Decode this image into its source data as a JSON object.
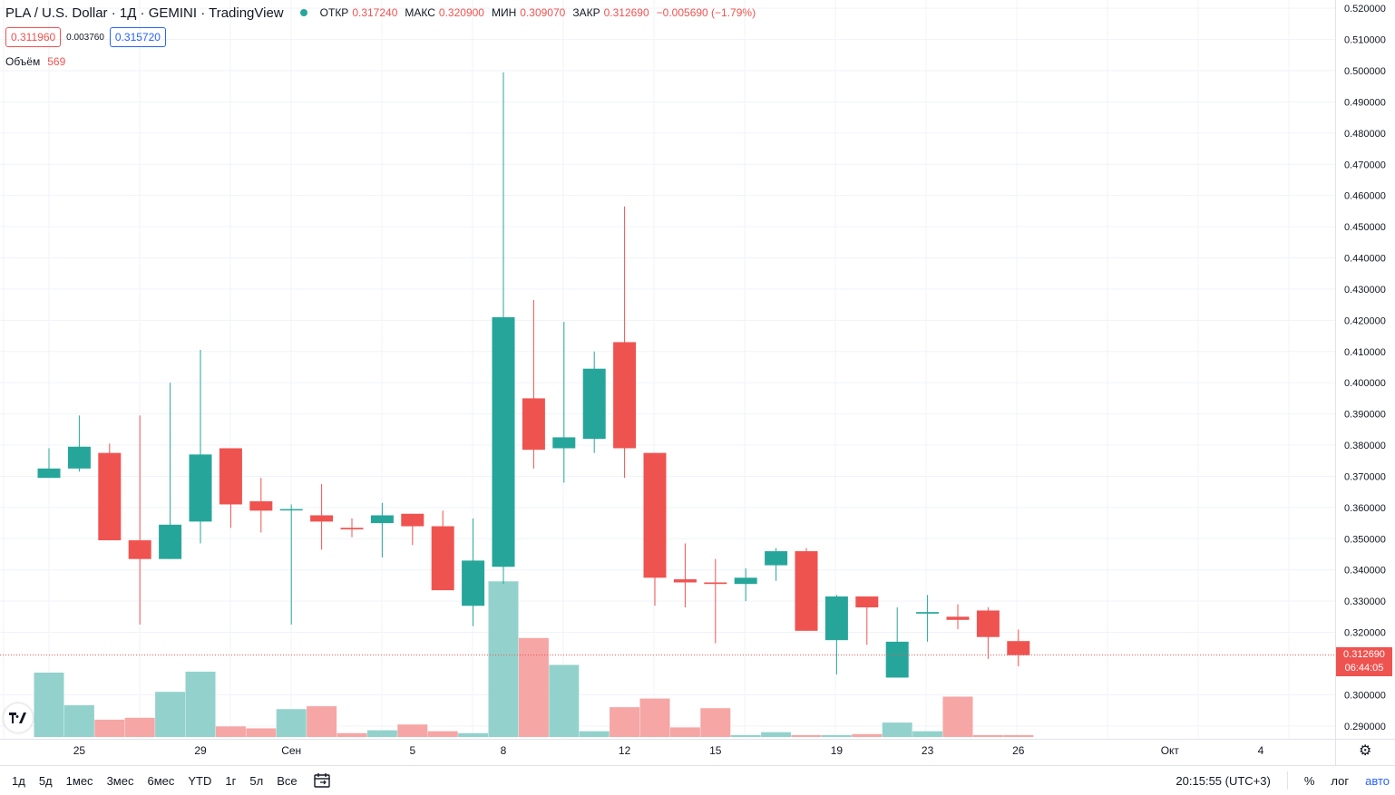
{
  "header": {
    "title": "PLA / U.S. Dollar · 1Д · GEMINI · TradingView",
    "ohlc": [
      {
        "label": "ОТКР",
        "value": "0.317240"
      },
      {
        "label": "МАКС",
        "value": "0.320900"
      },
      {
        "label": "МИН",
        "value": "0.309070"
      },
      {
        "label": "ЗАКР",
        "value": "0.312690"
      }
    ],
    "change": "−0.005690 (−1.79%)",
    "bid": "0.311960",
    "spread": "0.003760",
    "ask": "0.315720"
  },
  "volume": {
    "label": "Объём",
    "value": "569"
  },
  "last_price": {
    "price": "0.312690",
    "countdown": "06:44:05"
  },
  "logo": "tradingview-logo",
  "toolbar": {
    "ranges": [
      "1д",
      "5д",
      "1мес",
      "3мес",
      "6мес",
      "YTD",
      "1г",
      "5л",
      "Все"
    ],
    "time": "20:15:55 (UTC+3)",
    "percent": "%",
    "log": "лог",
    "auto": "авто"
  },
  "colors": {
    "up": "#26a69a",
    "down": "#ef5350",
    "up_vol": "#93d2cc",
    "down_vol": "#f5a6a5"
  },
  "chart_data": {
    "type": "candlestick",
    "y_ticks": [
      "0.520000",
      "0.510000",
      "0.500000",
      "0.490000",
      "0.480000",
      "0.470000",
      "0.460000",
      "0.450000",
      "0.440000",
      "0.430000",
      "0.420000",
      "0.410000",
      "0.400000",
      "0.390000",
      "0.380000",
      "0.370000",
      "0.360000",
      "0.350000",
      "0.340000",
      "0.330000",
      "0.320000",
      "0.300000",
      "0.290000"
    ],
    "ylim": [
      0.2865,
      0.5215
    ],
    "x_ticks": [
      {
        "label": "25",
        "idx": 1
      },
      {
        "label": "29",
        "idx": 5
      },
      {
        "label": "Сен",
        "idx": 8
      },
      {
        "label": "5",
        "idx": 12
      },
      {
        "label": "8",
        "idx": 15
      },
      {
        "label": "12",
        "idx": 19
      },
      {
        "label": "15",
        "idx": 22
      },
      {
        "label": "19",
        "idx": 26
      },
      {
        "label": "23",
        "idx": 29
      },
      {
        "label": "26",
        "idx": 32
      },
      {
        "label": "Окт",
        "idx": 37
      },
      {
        "label": "4",
        "idx": 40
      }
    ],
    "candles": [
      {
        "o": 0.3695,
        "h": 0.379,
        "l": 0.3695,
        "c": 0.3725,
        "v": 67
      },
      {
        "o": 0.3725,
        "h": 0.3895,
        "l": 0.3715,
        "c": 0.3795,
        "v": 33
      },
      {
        "o": 0.3775,
        "h": 0.3805,
        "l": 0.3495,
        "c": 0.3495,
        "v": 18
      },
      {
        "o": 0.3495,
        "h": 0.3895,
        "l": 0.3225,
        "c": 0.3435,
        "v": 20
      },
      {
        "o": 0.3435,
        "h": 0.4,
        "l": 0.3435,
        "c": 0.3545,
        "v": 47
      },
      {
        "o": 0.3555,
        "h": 0.4105,
        "l": 0.3485,
        "c": 0.377,
        "v": 68
      },
      {
        "o": 0.379,
        "h": 0.379,
        "l": 0.3535,
        "c": 0.361,
        "v": 11
      },
      {
        "o": 0.362,
        "h": 0.3695,
        "l": 0.352,
        "c": 0.359,
        "v": 9
      },
      {
        "o": 0.3595,
        "h": 0.361,
        "l": 0.3225,
        "c": 0.3595,
        "v": 29
      },
      {
        "o": 0.3575,
        "h": 0.3675,
        "l": 0.3465,
        "c": 0.3555,
        "v": 32
      },
      {
        "o": 0.3535,
        "h": 0.3565,
        "l": 0.3505,
        "c": 0.353,
        "v": 4
      },
      {
        "o": 0.355,
        "h": 0.3615,
        "l": 0.344,
        "c": 0.3575,
        "v": 7
      },
      {
        "o": 0.358,
        "h": 0.358,
        "l": 0.348,
        "c": 0.354,
        "v": 13
      },
      {
        "o": 0.354,
        "h": 0.359,
        "l": 0.3335,
        "c": 0.3335,
        "v": 6
      },
      {
        "o": 0.3285,
        "h": 0.3565,
        "l": 0.322,
        "c": 0.343,
        "v": 4
      },
      {
        "o": 0.341,
        "h": 0.4995,
        "l": 0.3355,
        "c": 0.421,
        "v": 162
      },
      {
        "o": 0.395,
        "h": 0.4265,
        "l": 0.3725,
        "c": 0.3785,
        "v": 103
      },
      {
        "o": 0.379,
        "h": 0.4195,
        "l": 0.368,
        "c": 0.3825,
        "v": 75
      },
      {
        "o": 0.382,
        "h": 0.41,
        "l": 0.3775,
        "c": 0.4045,
        "v": 6
      },
      {
        "o": 0.413,
        "h": 0.4565,
        "l": 0.3695,
        "c": 0.379,
        "v": 31
      },
      {
        "o": 0.3775,
        "h": 0.3775,
        "l": 0.3285,
        "c": 0.3375,
        "v": 40
      },
      {
        "o": 0.337,
        "h": 0.3485,
        "l": 0.328,
        "c": 0.336,
        "v": 10
      },
      {
        "o": 0.336,
        "h": 0.3435,
        "l": 0.3165,
        "c": 0.3355,
        "v": 30
      },
      {
        "o": 0.3355,
        "h": 0.3405,
        "l": 0.33,
        "c": 0.3375,
        "v": 2
      },
      {
        "o": 0.3415,
        "h": 0.347,
        "l": 0.3365,
        "c": 0.346,
        "v": 5
      },
      {
        "o": 0.346,
        "h": 0.347,
        "l": 0.3205,
        "c": 0.3205,
        "v": 2
      },
      {
        "o": 0.3175,
        "h": 0.332,
        "l": 0.3065,
        "c": 0.3315,
        "v": 2
      },
      {
        "o": 0.3315,
        "h": 0.3315,
        "l": 0.316,
        "c": 0.328,
        "v": 3
      },
      {
        "o": 0.3055,
        "h": 0.328,
        "l": 0.3055,
        "c": 0.317,
        "v": 15
      },
      {
        "o": 0.326,
        "h": 0.332,
        "l": 0.317,
        "c": 0.3265,
        "v": 6
      },
      {
        "o": 0.325,
        "h": 0.329,
        "l": 0.321,
        "c": 0.324,
        "v": 42
      },
      {
        "o": 0.327,
        "h": 0.328,
        "l": 0.3115,
        "c": 0.3185,
        "v": 2
      },
      {
        "o": 0.3172,
        "h": 0.3209,
        "l": 0.3091,
        "c": 0.3127,
        "v": 2
      }
    ]
  }
}
